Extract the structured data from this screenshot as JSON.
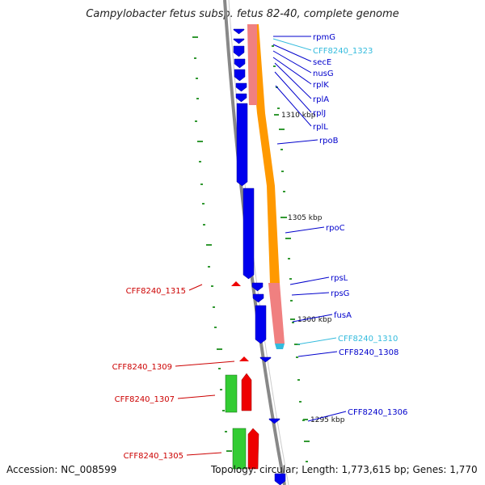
{
  "title": "Campylobacter fetus subsp. fetus 82-40, complete genome",
  "footer": {
    "accession": "Accession: NC_008599",
    "summary": "Topology: circular; Length: 1,773,615 bp; Genes: 1,770"
  },
  "colors": {
    "forward_cds": "#0000ee",
    "reverse_cds": "#ee0000",
    "rna_gene": "#33cc33",
    "trna_label": "#33bbdd",
    "track_orange": "#ff9900",
    "track_pink": "#f08080",
    "backbone": "#888888",
    "tick": "#339933"
  },
  "ruler": [
    {
      "label": "1310 kbp"
    },
    {
      "label": "1305 kbp"
    },
    {
      "label": "1300 kbp"
    },
    {
      "label": "1295 kbp"
    }
  ],
  "genes_right": [
    {
      "label": "rpmG",
      "color": "#0000cc"
    },
    {
      "label": "CFF8240_1323",
      "color": "#33bbdd"
    },
    {
      "label": "secE",
      "color": "#0000cc"
    },
    {
      "label": "nusG",
      "color": "#0000cc"
    },
    {
      "label": "rplK",
      "color": "#0000cc"
    },
    {
      "label": "rplA",
      "color": "#0000cc"
    },
    {
      "label": "rplJ",
      "color": "#0000cc"
    },
    {
      "label": "rplL",
      "color": "#0000cc"
    },
    {
      "label": "rpoB",
      "color": "#0000cc"
    },
    {
      "label": "rpoC",
      "color": "#0000cc"
    },
    {
      "label": "rpsL",
      "color": "#0000cc"
    },
    {
      "label": "rpsG",
      "color": "#0000cc"
    },
    {
      "label": "fusA",
      "color": "#0000cc"
    },
    {
      "label": "CFF8240_1310",
      "color": "#33bbdd"
    },
    {
      "label": "CFF8240_1308",
      "color": "#0000cc"
    },
    {
      "label": "CFF8240_1306",
      "color": "#0000cc"
    }
  ],
  "genes_left": [
    {
      "label": "CFF8240_1315",
      "color": "#cc0000"
    },
    {
      "label": "CFF8240_1309",
      "color": "#cc0000"
    },
    {
      "label": "CFF8240_1307",
      "color": "#cc0000"
    },
    {
      "label": "CFF8240_1305",
      "color": "#cc0000"
    }
  ]
}
